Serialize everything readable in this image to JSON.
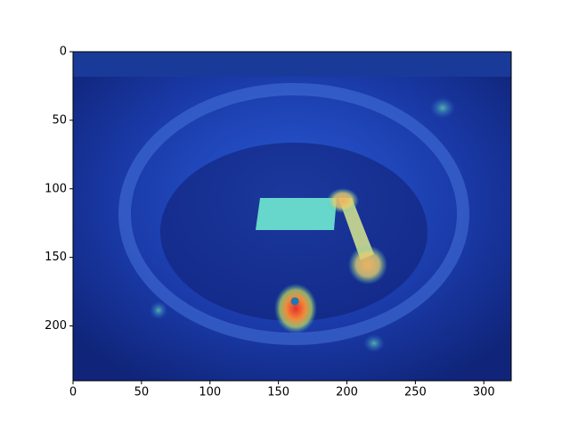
{
  "chart_data": {
    "type": "scatter",
    "x": [
      162
    ],
    "y": [
      182
    ],
    "color": "#1f77b4",
    "xlim": [
      0,
      320
    ],
    "ylim": [
      240,
      0
    ],
    "xticks": [
      0,
      50,
      100,
      150,
      200,
      250,
      300
    ],
    "yticks": [
      0,
      50,
      100,
      150,
      200
    ]
  }
}
